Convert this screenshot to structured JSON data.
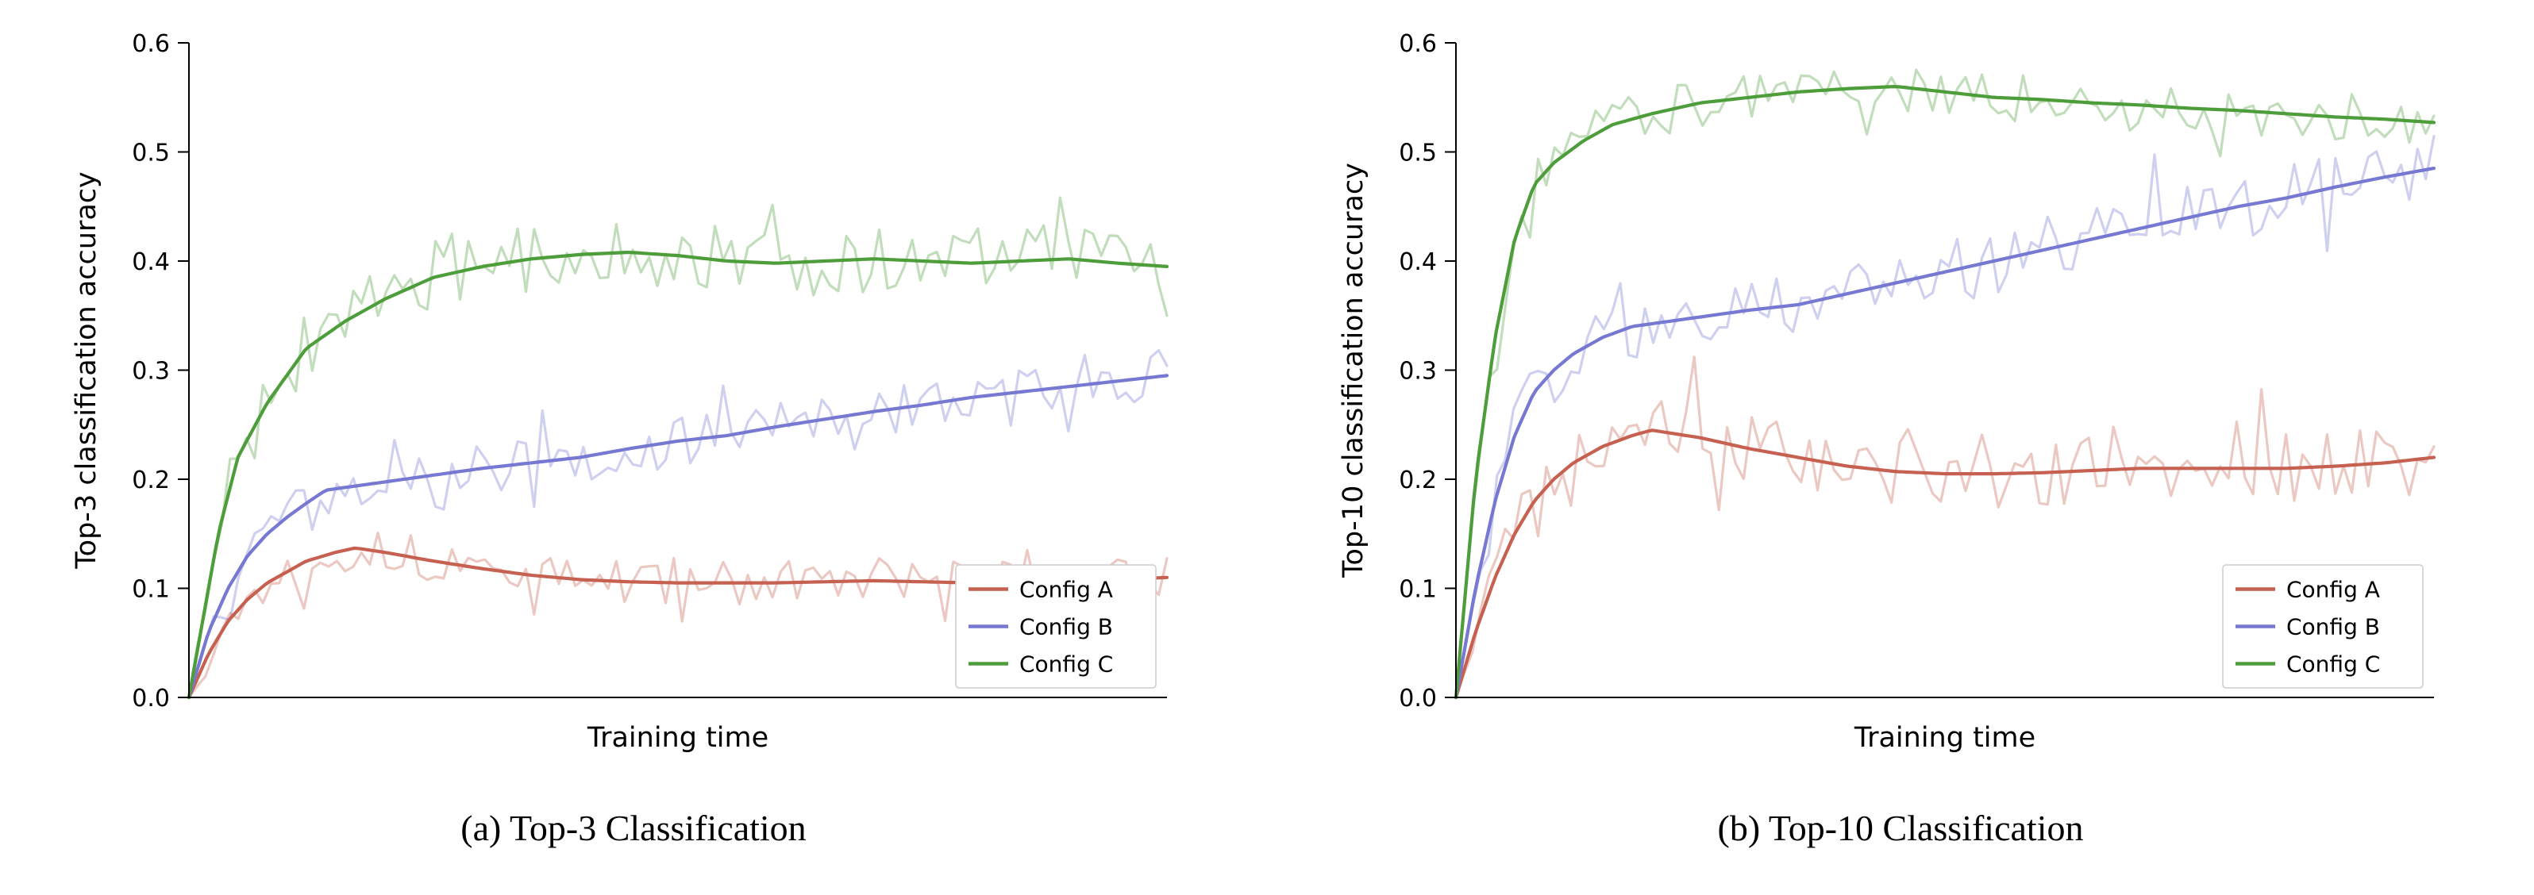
{
  "chart_data": [
    {
      "type": "line",
      "caption": "(a) Top-3 Classification",
      "ylabel": "Top-3 classification accuracy",
      "xlabel": "Training time",
      "ylim": [
        0,
        0.6
      ],
      "yticks": [
        "0.0",
        "0.1",
        "0.2",
        "0.3",
        "0.4",
        "0.5",
        "0.6"
      ],
      "x_tick_labels": [],
      "grid": false,
      "legend_position": "lower right",
      "legend": [
        "Config A",
        "Config B",
        "Config C"
      ],
      "series": [
        {
          "name": "Config A",
          "color": "#C66151",
          "seed": 13,
          "noise": 0.02,
          "x": [
            0,
            0.02,
            0.04,
            0.06,
            0.08,
            0.1,
            0.12,
            0.15,
            0.17,
            0.2,
            0.25,
            0.3,
            0.35,
            0.4,
            0.45,
            0.5,
            0.55,
            0.6,
            0.65,
            0.7,
            0.75,
            0.8,
            0.85,
            0.9,
            0.95,
            1.0
          ],
          "y": [
            0,
            0.04,
            0.07,
            0.09,
            0.105,
            0.115,
            0.125,
            0.133,
            0.137,
            0.133,
            0.125,
            0.118,
            0.112,
            0.108,
            0.106,
            0.105,
            0.105,
            0.105,
            0.106,
            0.107,
            0.106,
            0.105,
            0.105,
            0.106,
            0.108,
            0.11
          ]
        },
        {
          "name": "Config B",
          "color": "#7678D1",
          "seed": 47,
          "noise": 0.022,
          "x": [
            0,
            0.02,
            0.04,
            0.06,
            0.08,
            0.1,
            0.12,
            0.14,
            0.18,
            0.22,
            0.26,
            0.3,
            0.35,
            0.4,
            0.45,
            0.5,
            0.55,
            0.6,
            0.65,
            0.7,
            0.75,
            0.8,
            0.85,
            0.9,
            0.95,
            1.0
          ],
          "y": [
            0,
            0.06,
            0.1,
            0.13,
            0.15,
            0.165,
            0.178,
            0.19,
            0.195,
            0.2,
            0.205,
            0.21,
            0.215,
            0.22,
            0.228,
            0.235,
            0.24,
            0.248,
            0.255,
            0.262,
            0.268,
            0.275,
            0.28,
            0.285,
            0.29,
            0.295
          ]
        },
        {
          "name": "Config C",
          "color": "#4E9D3B",
          "seed": 91,
          "noise": 0.032,
          "x": [
            0,
            0.01,
            0.03,
            0.05,
            0.08,
            0.12,
            0.16,
            0.2,
            0.25,
            0.3,
            0.35,
            0.4,
            0.45,
            0.5,
            0.55,
            0.6,
            0.65,
            0.7,
            0.75,
            0.8,
            0.85,
            0.9,
            0.95,
            1.0
          ],
          "y": [
            0,
            0.05,
            0.15,
            0.22,
            0.27,
            0.32,
            0.345,
            0.365,
            0.385,
            0.395,
            0.402,
            0.406,
            0.408,
            0.405,
            0.4,
            0.398,
            0.4,
            0.402,
            0.4,
            0.398,
            0.4,
            0.402,
            0.398,
            0.395
          ]
        }
      ]
    },
    {
      "type": "line",
      "caption": "(b) Top-10 Classification",
      "ylabel": "Top-10 classification accuracy",
      "xlabel": "Training time",
      "ylim": [
        0,
        0.6
      ],
      "yticks": [
        "0.0",
        "0.1",
        "0.2",
        "0.3",
        "0.4",
        "0.5",
        "0.6"
      ],
      "x_tick_labels": [],
      "grid": false,
      "legend_position": "lower right",
      "legend": [
        "Config A",
        "Config B",
        "Config C"
      ],
      "series": [
        {
          "name": "Config A",
          "color": "#C66151",
          "seed": 5,
          "noise": 0.032,
          "x": [
            0,
            0.02,
            0.04,
            0.06,
            0.08,
            0.1,
            0.12,
            0.15,
            0.18,
            0.2,
            0.25,
            0.3,
            0.35,
            0.4,
            0.45,
            0.5,
            0.55,
            0.6,
            0.65,
            0.7,
            0.75,
            0.8,
            0.85,
            0.9,
            0.95,
            1.0
          ],
          "y": [
            0,
            0.06,
            0.11,
            0.15,
            0.18,
            0.2,
            0.215,
            0.23,
            0.24,
            0.245,
            0.238,
            0.228,
            0.22,
            0.212,
            0.207,
            0.205,
            0.205,
            0.206,
            0.208,
            0.21,
            0.21,
            0.21,
            0.21,
            0.212,
            0.215,
            0.22
          ]
        },
        {
          "name": "Config B",
          "color": "#7678D1",
          "seed": 29,
          "noise": 0.03,
          "x": [
            0,
            0.02,
            0.04,
            0.06,
            0.08,
            0.1,
            0.12,
            0.15,
            0.18,
            0.22,
            0.26,
            0.3,
            0.35,
            0.4,
            0.45,
            0.5,
            0.55,
            0.6,
            0.65,
            0.7,
            0.75,
            0.8,
            0.85,
            0.9,
            0.95,
            1.0
          ],
          "y": [
            0,
            0.1,
            0.18,
            0.24,
            0.28,
            0.3,
            0.315,
            0.33,
            0.34,
            0.345,
            0.35,
            0.355,
            0.36,
            0.37,
            0.38,
            0.39,
            0.4,
            0.41,
            0.42,
            0.43,
            0.44,
            0.45,
            0.458,
            0.468,
            0.477,
            0.485
          ]
        },
        {
          "name": "Config C",
          "color": "#4E9D3B",
          "seed": 63,
          "noise": 0.022,
          "x": [
            0,
            0.01,
            0.02,
            0.04,
            0.06,
            0.08,
            0.1,
            0.13,
            0.16,
            0.2,
            0.25,
            0.3,
            0.35,
            0.4,
            0.45,
            0.5,
            0.55,
            0.6,
            0.65,
            0.7,
            0.75,
            0.8,
            0.85,
            0.9,
            0.95,
            1.0
          ],
          "y": [
            0,
            0.1,
            0.2,
            0.33,
            0.42,
            0.47,
            0.49,
            0.51,
            0.525,
            0.535,
            0.545,
            0.55,
            0.555,
            0.558,
            0.56,
            0.555,
            0.55,
            0.548,
            0.545,
            0.543,
            0.54,
            0.538,
            0.535,
            0.532,
            0.53,
            0.527
          ]
        }
      ]
    }
  ],
  "style": {
    "background": "#ffffff",
    "axis_color": "#000000",
    "legend_border_color": "#cccccc",
    "raw_line_opacity": 0.35
  }
}
